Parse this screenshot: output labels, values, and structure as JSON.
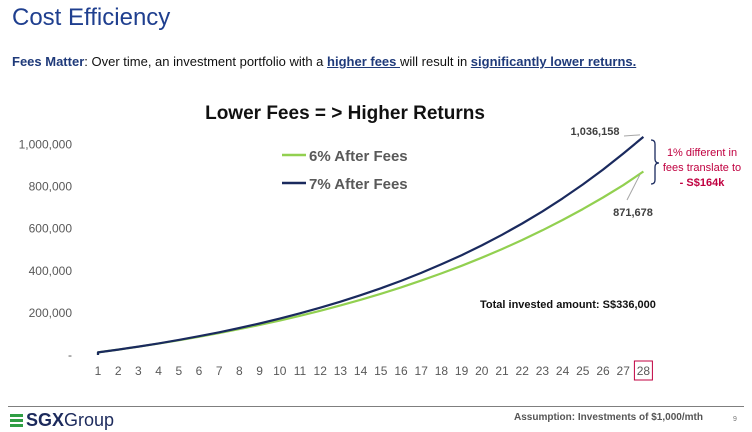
{
  "page": {
    "title_prefix": "Cost ",
    "title_emph": "E",
    "title_rest": "fficiency",
    "subtitle_lead": "Fees Matter",
    "subtitle_part1": ": Over time, an investment portfolio with a ",
    "subtitle_em1": "higher fees ",
    "subtitle_part2": "will result in ",
    "subtitle_em2": "significantly lower returns.",
    "logo_bold": "SGX",
    "logo_rest": "Group",
    "footnote": "Assumption: Investments of $1,000/mth",
    "page_number": "9"
  },
  "colors": {
    "series_6pct": "#92d050",
    "series_7pct": "#1a2a5e",
    "highlight_box": "#c00040",
    "callout_text": "#c00040",
    "brace": "#1a2a5e",
    "title_blue": "#1f3f8f"
  },
  "chart_data": {
    "type": "line",
    "title": "Lower Fees = > Higher Returns",
    "x": [
      1,
      2,
      3,
      4,
      5,
      6,
      7,
      8,
      9,
      10,
      11,
      12,
      13,
      14,
      15,
      16,
      17,
      18,
      19,
      20,
      21,
      22,
      23,
      24,
      25,
      26,
      27,
      28
    ],
    "ylim": [
      0,
      1100000
    ],
    "y_ticks": [
      0,
      200000,
      400000,
      600000,
      800000,
      1000000
    ],
    "y_tick_labels": [
      "-",
      "200,000",
      "400,000",
      "600,000",
      "800,000",
      "1,000,000"
    ],
    "grid": false,
    "legend_position": "top-left",
    "highlighted_x": 28,
    "series": [
      {
        "name": "6% After Fees",
        "values": [
          12336,
          25434,
          39340,
          54104,
          69779,
          86421,
          104089,
          122848,
          142764,
          163909,
          186358,
          210193,
          235498,
          262364,
          290888,
          321172,
          353325,
          387462,
          423705,
          462184,
          503038,
          546412,
          592462,
          641353,
          693260,
          748370,
          806880,
          871678
        ]
      },
      {
        "name": "7% After Fees",
        "values": [
          12393,
          25681,
          39930,
          55209,
          71593,
          89160,
          107998,
          128197,
          149856,
          173080,
          197982,
          224683,
          253315,
          284016,
          316936,
          352235,
          390084,
          430670,
          474189,
          520853,
          570890,
          624543,
          682074,
          743763,
          809910,
          880838,
          956891,
          1036158
        ]
      }
    ],
    "annotations": {
      "end_label_7pct": "1,036,158",
      "end_label_6pct": "871,678",
      "total_invested": "Total invested amount: S$336,000",
      "callout_line1": "1% different in",
      "callout_line2": "fees translate to",
      "callout_line3": "- S$164k"
    }
  }
}
